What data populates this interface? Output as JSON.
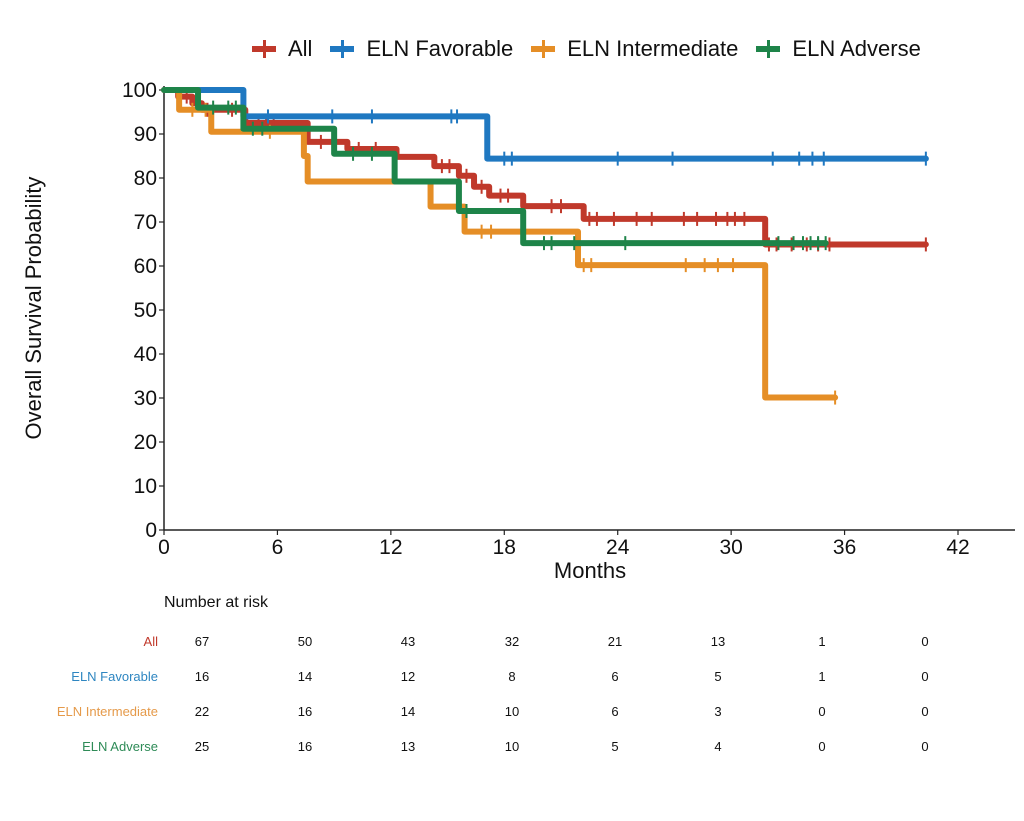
{
  "chart_data": {
    "type": "line",
    "subtype": "kaplan-meier step",
    "title": "",
    "xlabel": "Months",
    "ylabel": "Overall Survival Probability",
    "xlim": [
      0,
      45
    ],
    "ylim": [
      0,
      100
    ],
    "xticks": [
      0,
      6,
      12,
      18,
      24,
      30,
      36,
      42
    ],
    "yticks": [
      0,
      10,
      20,
      30,
      40,
      50,
      60,
      70,
      80,
      90,
      100
    ],
    "grid": false,
    "legend_position": "top",
    "series": [
      {
        "name": "All",
        "color": "#c0392b",
        "steps": [
          [
            0,
            100
          ],
          [
            0.75,
            98.5
          ],
          [
            1.5,
            97
          ],
          [
            2.0,
            95.5
          ],
          [
            4.3,
            92.5
          ],
          [
            7.6,
            88.2
          ],
          [
            9.7,
            86.6
          ],
          [
            12.3,
            84.8
          ],
          [
            14.3,
            82.7
          ],
          [
            15.6,
            80.5
          ],
          [
            16.4,
            78
          ],
          [
            17.2,
            76
          ],
          [
            19.0,
            73.6
          ],
          [
            22.2,
            70.7
          ],
          [
            31.8,
            64.9
          ],
          [
            40.3,
            64.9
          ]
        ],
        "censored": [
          1.2,
          1.9,
          2.3,
          3.6,
          4.1,
          5.0,
          5.4,
          5.8,
          8.3,
          10.3,
          11.2,
          14.7,
          15.1,
          16.0,
          16.8,
          17.8,
          18.2,
          20.5,
          21.0,
          22.5,
          22.9,
          23.8,
          25.0,
          25.8,
          27.5,
          28.2,
          29.2,
          29.8,
          30.2,
          30.7,
          32.0,
          32.4,
          33.2,
          34.0,
          34.6,
          35.2,
          40.3
        ]
      },
      {
        "name": "ELN Favorable",
        "color": "#1f78c1",
        "steps": [
          [
            0,
            100
          ],
          [
            4.2,
            94
          ],
          [
            17.1,
            84.4
          ],
          [
            40.3,
            84.4
          ]
        ],
        "censored": [
          5.5,
          8.9,
          11.0,
          15.2,
          15.5,
          18.0,
          18.4,
          24.0,
          26.9,
          32.2,
          33.6,
          34.3,
          34.9,
          40.3
        ]
      },
      {
        "name": "ELN Intermediate",
        "color": "#e58e26",
        "steps": [
          [
            0,
            100
          ],
          [
            0.8,
            95.5
          ],
          [
            2.5,
            90.5
          ],
          [
            7.4,
            85
          ],
          [
            7.6,
            79.2
          ],
          [
            14.1,
            73.5
          ],
          [
            15.9,
            67.8
          ],
          [
            21.9,
            60.2
          ],
          [
            31.8,
            30.1
          ],
          [
            35.5,
            30.1
          ]
        ],
        "censored": [
          1.5,
          2.2,
          5.6,
          16.8,
          17.3,
          22.2,
          22.6,
          27.6,
          28.6,
          29.3,
          30.1,
          35.5
        ]
      },
      {
        "name": "ELN Adverse",
        "color": "#1e8449",
        "steps": [
          [
            0,
            100
          ],
          [
            1.8,
            96
          ],
          [
            4.2,
            91.2
          ],
          [
            9.0,
            85.5
          ],
          [
            12.2,
            79.2
          ],
          [
            15.6,
            72.5
          ],
          [
            19.0,
            65.2
          ],
          [
            35.0,
            65.2
          ]
        ],
        "censored": [
          2.6,
          3.4,
          3.8,
          4.7,
          5.2,
          10.0,
          11.0,
          16.0,
          20.1,
          20.5,
          21.7,
          24.4,
          32.5,
          33.3,
          33.8,
          34.2,
          34.6,
          35.0
        ]
      }
    ],
    "risk_table": {
      "title": "Number at risk",
      "times": [
        0,
        6,
        12,
        18,
        24,
        30,
        36,
        42
      ],
      "rows": [
        {
          "label": "All",
          "color": "#c0392b",
          "values": [
            67,
            50,
            43,
            32,
            21,
            13,
            1,
            0
          ]
        },
        {
          "label": "ELN Favorable",
          "color": "#2e86c1",
          "values": [
            16,
            14,
            12,
            8,
            6,
            5,
            1,
            0
          ]
        },
        {
          "label": "ELN Intermediate",
          "color": "#e59a4a",
          "values": [
            22,
            16,
            14,
            10,
            6,
            3,
            0,
            0
          ]
        },
        {
          "label": "ELN Adverse",
          "color": "#2e8b57",
          "values": [
            25,
            16,
            13,
            10,
            5,
            4,
            0,
            0
          ]
        }
      ]
    }
  }
}
